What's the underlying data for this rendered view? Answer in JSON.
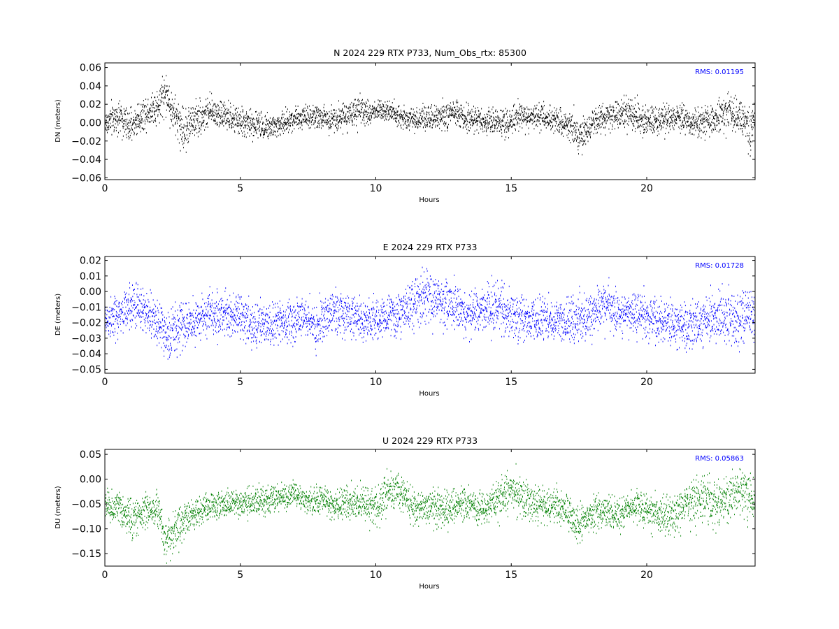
{
  "chart_data": [
    {
      "type": "scatter",
      "title": "N 2024 229 RTX  P733, Num_Obs_rtx: 85300",
      "xlabel": "Hours",
      "ylabel": "DN (meters)",
      "xlim": [
        0,
        24
      ],
      "ylim": [
        -0.062,
        0.065
      ],
      "xticks": [
        0,
        5,
        10,
        15,
        20
      ],
      "xtick_labels": [
        "0",
        "5",
        "10",
        "15",
        "20"
      ],
      "yticks": [
        -0.06,
        -0.04,
        -0.02,
        0.0,
        0.02,
        0.04,
        0.06
      ],
      "ytick_labels": [
        "−0.06",
        "−0.04",
        "−0.02",
        "0.00",
        "0.02",
        "0.04",
        "0.06"
      ],
      "annotation": "RMS:  0.01195",
      "color": "#000000",
      "grid": false,
      "series": [
        {
          "x": [
            0,
            0.5,
            0.9,
            1.5,
            2.0,
            2.2,
            2.5,
            2.9,
            3.3,
            4.0,
            4.6,
            5.2,
            5.7,
            6.3,
            7.0,
            7.6,
            8.2,
            8.8,
            9.3,
            9.8,
            10.3,
            10.8,
            11.5,
            12.2,
            12.8,
            13.5,
            14.2,
            14.9,
            15.4,
            16.0,
            16.6,
            17.2,
            17.5,
            18.0,
            18.6,
            19.2,
            19.8,
            20.5,
            21.2,
            21.8,
            22.5,
            23.0,
            23.5,
            23.8,
            24.0
          ],
          "y": [
            0.0,
            0.008,
            -0.004,
            0.012,
            0.02,
            0.035,
            0.012,
            -0.008,
            0.005,
            0.013,
            0.005,
            0.0,
            -0.002,
            -0.004,
            0.006,
            0.008,
            0.004,
            0.008,
            0.012,
            0.012,
            0.016,
            0.008,
            0.004,
            0.005,
            0.01,
            0.005,
            0.002,
            0.0,
            0.008,
            0.008,
            0.005,
            -0.002,
            -0.016,
            0.002,
            0.006,
            0.012,
            0.004,
            0.002,
            0.006,
            0.0,
            0.006,
            0.012,
            0.006,
            -0.012,
            0.005
          ],
          "spread": [
            0.012,
            0.013,
            0.013,
            0.012,
            0.015,
            0.018,
            0.015,
            0.018,
            0.014,
            0.012,
            0.011,
            0.011,
            0.011,
            0.011,
            0.009,
            0.009,
            0.01,
            0.011,
            0.011,
            0.01,
            0.009,
            0.009,
            0.009,
            0.01,
            0.011,
            0.01,
            0.01,
            0.012,
            0.011,
            0.01,
            0.01,
            0.012,
            0.014,
            0.012,
            0.012,
            0.013,
            0.012,
            0.012,
            0.012,
            0.012,
            0.012,
            0.014,
            0.014,
            0.02,
            0.014
          ]
        }
      ]
    },
    {
      "type": "scatter",
      "title": "E 2024 229 RTX  P733",
      "xlabel": "Hours",
      "ylabel": "DE (meters)",
      "xlim": [
        0,
        24
      ],
      "ylim": [
        -0.0525,
        0.0225
      ],
      "xticks": [
        0,
        5,
        10,
        15,
        20
      ],
      "xtick_labels": [
        "0",
        "5",
        "10",
        "15",
        "20"
      ],
      "yticks": [
        -0.05,
        -0.04,
        -0.03,
        -0.02,
        -0.01,
        0.0,
        0.01,
        0.02
      ],
      "ytick_labels": [
        "−0.05",
        "−0.04",
        "−0.03",
        "−0.02",
        "−0.01",
        "0.00",
        "0.01",
        "0.02"
      ],
      "annotation": "RMS:  0.01728",
      "color": "#0000ff",
      "grid": false,
      "series": [
        {
          "x": [
            0,
            0.5,
            1.0,
            1.5,
            2.0,
            2.3,
            2.8,
            3.3,
            3.8,
            4.3,
            4.8,
            5.3,
            5.8,
            6.3,
            6.8,
            7.3,
            7.8,
            8.3,
            8.8,
            9.3,
            9.8,
            10.3,
            10.8,
            11.3,
            11.8,
            12.3,
            12.8,
            13.3,
            13.8,
            14.3,
            14.8,
            15.3,
            15.8,
            16.3,
            16.8,
            17.3,
            17.8,
            18.3,
            18.8,
            19.3,
            19.8,
            20.3,
            20.8,
            21.3,
            21.8,
            22.3,
            22.8,
            23.3,
            23.8,
            24.0
          ],
          "y": [
            -0.018,
            -0.016,
            -0.008,
            -0.012,
            -0.022,
            -0.028,
            -0.022,
            -0.018,
            -0.014,
            -0.014,
            -0.014,
            -0.02,
            -0.022,
            -0.02,
            -0.018,
            -0.016,
            -0.022,
            -0.012,
            -0.014,
            -0.016,
            -0.018,
            -0.016,
            -0.014,
            -0.01,
            -0.004,
            -0.004,
            -0.01,
            -0.014,
            -0.012,
            -0.008,
            -0.014,
            -0.016,
            -0.018,
            -0.016,
            -0.02,
            -0.018,
            -0.016,
            -0.01,
            -0.012,
            -0.014,
            -0.014,
            -0.016,
            -0.02,
            -0.024,
            -0.02,
            -0.018,
            -0.016,
            -0.016,
            -0.016,
            -0.018
          ],
          "spread": [
            0.01,
            0.01,
            0.011,
            0.011,
            0.011,
            0.012,
            0.011,
            0.01,
            0.01,
            0.01,
            0.01,
            0.01,
            0.01,
            0.01,
            0.01,
            0.01,
            0.011,
            0.01,
            0.01,
            0.01,
            0.01,
            0.01,
            0.01,
            0.011,
            0.012,
            0.012,
            0.011,
            0.01,
            0.011,
            0.012,
            0.011,
            0.011,
            0.01,
            0.01,
            0.01,
            0.011,
            0.01,
            0.011,
            0.011,
            0.01,
            0.01,
            0.01,
            0.01,
            0.011,
            0.012,
            0.012,
            0.012,
            0.012,
            0.012,
            0.012
          ]
        }
      ]
    },
    {
      "type": "scatter",
      "title": "U 2024 229 RTX  P733",
      "xlabel": "Hours",
      "ylabel": "DU (meters)",
      "xlim": [
        0,
        24
      ],
      "ylim": [
        -0.175,
        0.06
      ],
      "xticks": [
        0,
        5,
        10,
        15,
        20
      ],
      "xtick_labels": [
        "0",
        "5",
        "10",
        "15",
        "20"
      ],
      "yticks": [
        -0.15,
        -0.1,
        -0.05,
        0.0,
        0.05
      ],
      "ytick_labels": [
        "−0.15",
        "−0.10",
        "−0.05",
        "0.00",
        "0.05"
      ],
      "annotation": "RMS:  0.05863",
      "color": "#008000",
      "grid": false,
      "series": [
        {
          "x": [
            0,
            0.5,
            1.0,
            1.5,
            2.0,
            2.2,
            2.6,
            3.0,
            3.5,
            4.0,
            4.5,
            5.0,
            5.5,
            6.0,
            6.5,
            7.0,
            7.5,
            8.0,
            8.5,
            9.0,
            9.5,
            10.0,
            10.5,
            11.0,
            11.5,
            12.0,
            12.5,
            13.0,
            13.5,
            14.0,
            14.5,
            15.0,
            15.5,
            16.0,
            16.5,
            17.0,
            17.5,
            18.0,
            18.5,
            19.0,
            19.5,
            20.0,
            20.5,
            21.0,
            21.5,
            22.0,
            22.5,
            23.0,
            23.5,
            24.0
          ],
          "y": [
            -0.05,
            -0.06,
            -0.08,
            -0.06,
            -0.06,
            -0.12,
            -0.1,
            -0.08,
            -0.06,
            -0.05,
            -0.05,
            -0.05,
            -0.045,
            -0.04,
            -0.035,
            -0.03,
            -0.045,
            -0.04,
            -0.05,
            -0.05,
            -0.04,
            -0.06,
            -0.02,
            -0.03,
            -0.06,
            -0.05,
            -0.06,
            -0.05,
            -0.05,
            -0.06,
            -0.04,
            -0.02,
            -0.04,
            -0.05,
            -0.05,
            -0.06,
            -0.09,
            -0.07,
            -0.06,
            -0.07,
            -0.05,
            -0.06,
            -0.07,
            -0.07,
            -0.05,
            -0.04,
            -0.05,
            -0.04,
            -0.02,
            -0.05
          ],
          "spread": [
            0.025,
            0.025,
            0.028,
            0.025,
            0.025,
            0.03,
            0.028,
            0.025,
            0.022,
            0.022,
            0.02,
            0.02,
            0.02,
            0.02,
            0.02,
            0.02,
            0.02,
            0.022,
            0.022,
            0.025,
            0.028,
            0.03,
            0.03,
            0.028,
            0.025,
            0.025,
            0.028,
            0.025,
            0.025,
            0.025,
            0.028,
            0.032,
            0.03,
            0.025,
            0.025,
            0.025,
            0.03,
            0.028,
            0.025,
            0.025,
            0.025,
            0.025,
            0.028,
            0.03,
            0.035,
            0.035,
            0.035,
            0.035,
            0.035,
            0.03
          ]
        }
      ]
    }
  ]
}
